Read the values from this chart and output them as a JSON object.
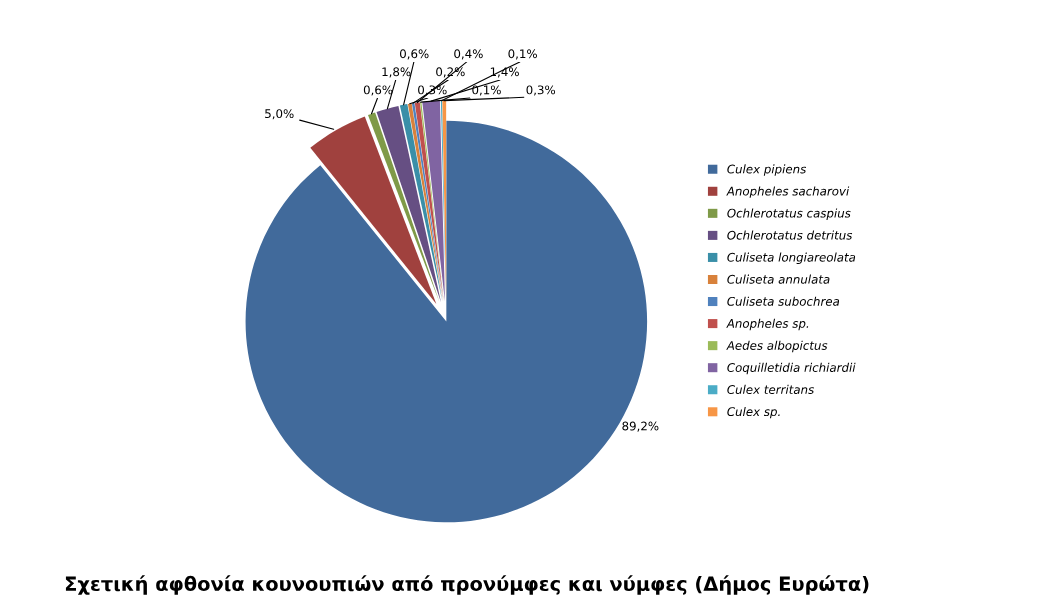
{
  "chart_data": {
    "type": "pie",
    "title": "Σχετική αφθονία κουνουπιών από προνύμφες και νύμφες (Δήμος Ευρώτα)",
    "categories": [
      "Culex pipiens",
      "Anopheles sacharovi",
      "Ochlerotatus caspius",
      "Ochlerotatus detritus",
      "Culiseta longiareolata",
      "Culiseta annulata",
      "Culiseta subochrea",
      "Anopheles sp.",
      "Aedes albopictus",
      "Coquilletidia richiardii",
      "Culex territans",
      "Culex sp."
    ],
    "values": [
      89.2,
      5.0,
      0.6,
      1.8,
      0.6,
      0.3,
      0.2,
      0.4,
      0.1,
      1.4,
      0.1,
      0.3
    ],
    "value_labels": [
      "89,2%",
      "5,0%",
      "0,6%",
      "1,8%",
      "0,6%",
      "0,3%",
      "0,2%",
      "0,4%",
      "0,1%",
      "1,4%",
      "0,1%",
      "0,3%"
    ],
    "colors": [
      "#416a9b",
      "#a0413e",
      "#7f9a48",
      "#664f83",
      "#3a8fa8",
      "#d8813b",
      "#4f81bd",
      "#c0504d",
      "#9bbb59",
      "#8064a2",
      "#4bacc6",
      "#f79646"
    ],
    "legend": "right"
  }
}
